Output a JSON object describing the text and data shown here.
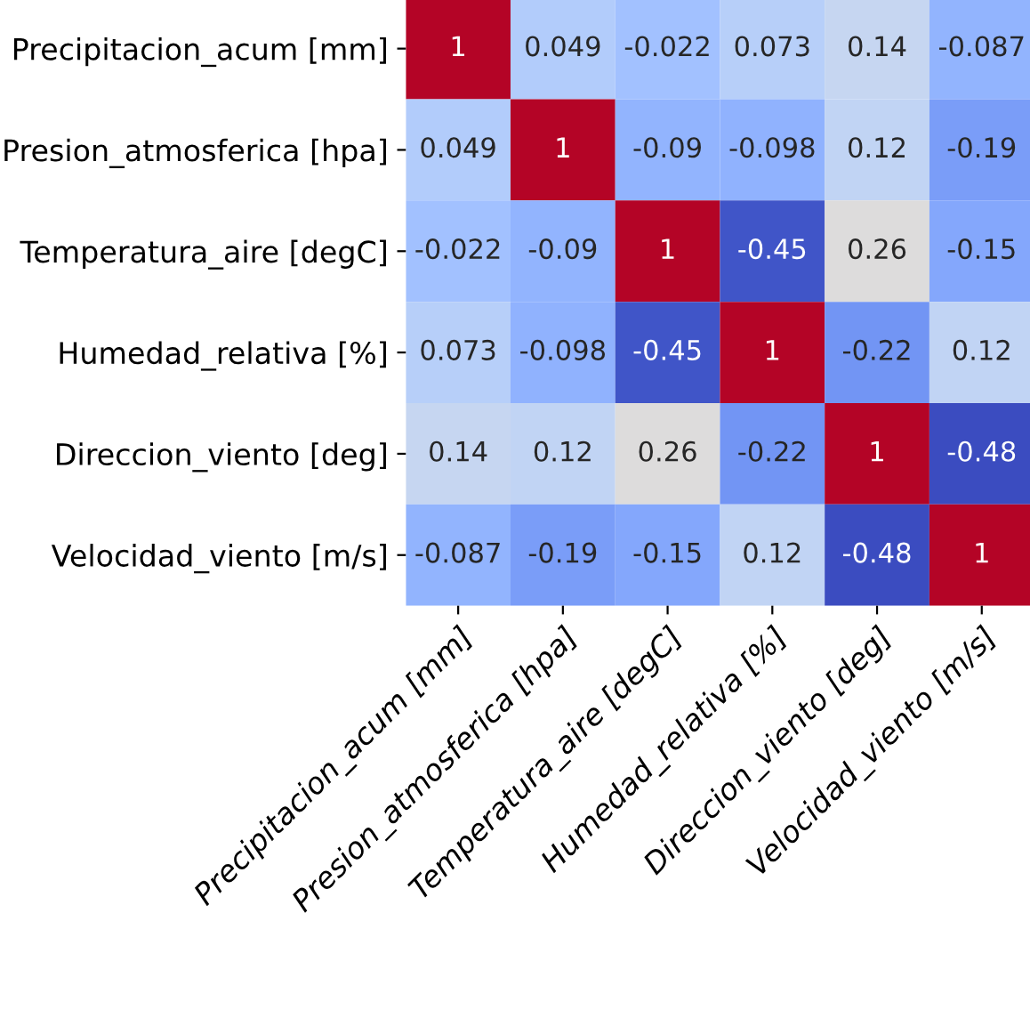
{
  "chart_data": {
    "type": "heatmap",
    "categories": [
      "Precipitacion_acum [mm]",
      "Presion_atmosferica [hpa]",
      "Temperatura_aire [degC]",
      "Humedad_relativa [%]",
      "Direccion_viento [deg]",
      "Velocidad_viento [m/s]"
    ],
    "y_categories": [
      "Precipitacion_acum [mm]",
      "Presion_atmosferica [hpa]",
      "Temperatura_aire [degC]",
      "Humedad_relativa [%]",
      "Direccion_viento [deg]",
      "Velocidad_viento [m/s]"
    ],
    "cells": [
      [
        1,
        0.049,
        -0.022,
        0.073,
        0.14,
        -0.087
      ],
      [
        0.049,
        1,
        -0.09,
        -0.098,
        0.12,
        -0.19
      ],
      [
        -0.022,
        -0.09,
        1,
        -0.45,
        0.26,
        -0.15
      ],
      [
        0.073,
        -0.098,
        -0.45,
        1,
        -0.22,
        0.12
      ],
      [
        0.14,
        0.12,
        0.26,
        -0.22,
        1,
        -0.48
      ],
      [
        -0.087,
        -0.19,
        -0.15,
        0.12,
        -0.48,
        1
      ]
    ],
    "data_labels": true
  }
}
